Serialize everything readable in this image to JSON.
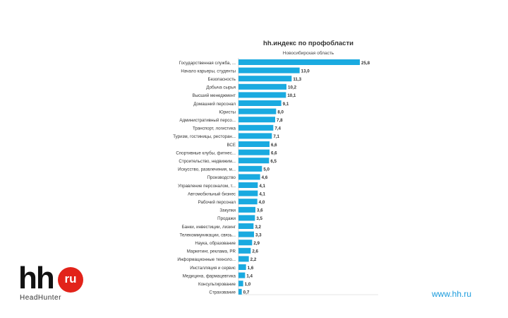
{
  "chart_data": {
    "type": "bar",
    "orientation": "horizontal",
    "title": "hh.индекс по профобласти",
    "subtitle": "Новосибирская область",
    "bar_color": "#1aaae0",
    "xlim": [
      0,
      26
    ],
    "grid": false,
    "legend": "none",
    "categories": [
      "Государственная служба, ...",
      "Начало карьеры, студенты",
      "Безопасность",
      "Добыча сырья",
      "Высший менеджмент",
      "Домашний персонал",
      "Юристы",
      "Административный персо...",
      "Транспорт, логистика",
      "Туризм, гостиницы, ресторан...",
      "ВСЕ",
      "Спортивные клубы, фитнес...",
      "Строительство, недвижим...",
      "Искусство, развлечения, м...",
      "Производство",
      "Управление персоналом, т...",
      "Автомобильный бизнес",
      "Рабочий персонал",
      "Закупки",
      "Продажи",
      "Банки, инвестиции, лизинг",
      "Телекоммуникации, связь...",
      "Наука, образование",
      "Маркетинг, реклама, PR",
      "Информационные техноло...",
      "Инсталляция и сервис",
      "Медицина, фармацевтика",
      "Консультирование",
      "Страхование"
    ],
    "values": [
      25.8,
      13.0,
      11.3,
      10.2,
      10.1,
      9.1,
      8.0,
      7.8,
      7.4,
      7.1,
      6.6,
      6.6,
      6.5,
      5.0,
      4.6,
      4.1,
      4.1,
      4.0,
      3.6,
      3.5,
      3.2,
      3.3,
      2.9,
      2.6,
      2.2,
      1.6,
      1.4,
      1.0,
      0.7
    ],
    "value_labels": [
      "25,8",
      "13,0",
      "11,3",
      "10,2",
      "10,1",
      "9,1",
      "8,0",
      "7,8",
      "7,4",
      "7,1",
      "6,6",
      "6,6",
      "6,5",
      "5,0",
      "4,6",
      "4,1",
      "4,1",
      "4,0",
      "3,6",
      "3,5",
      "3,2",
      "3,3",
      "2,9",
      "2,6",
      "2,2",
      "1,6",
      "1,4",
      "1,0",
      "0,7"
    ]
  },
  "logo": {
    "mark": "hh",
    "badge": "ru",
    "name": "HeadHunter"
  },
  "footer": {
    "site": "www.hh.ru"
  }
}
